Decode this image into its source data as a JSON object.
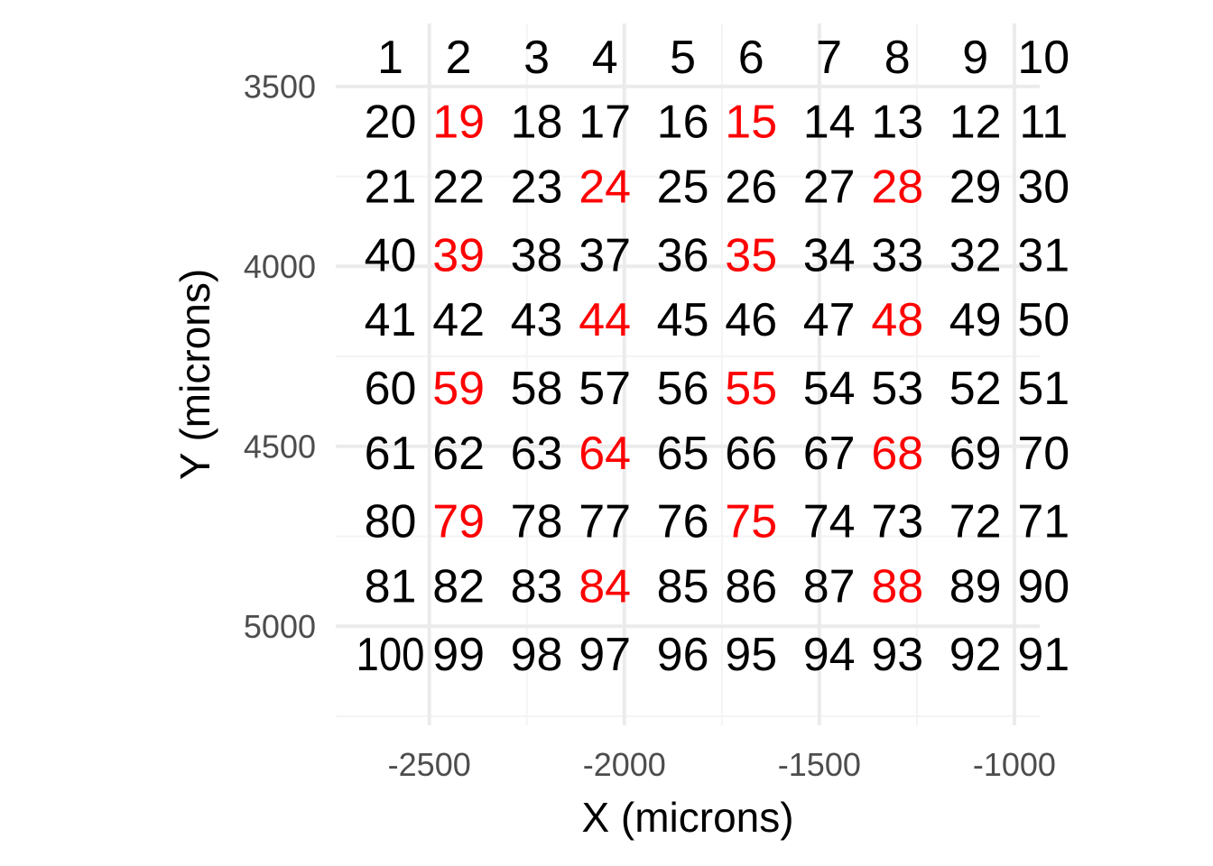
{
  "chart_data": {
    "type": "scatter",
    "xlabel": "X (microns)",
    "ylabel": "Y (microns)",
    "xlim": [
      -2740,
      -935
    ],
    "ylim": [
      3325,
      5275
    ],
    "y_reversed": true,
    "grid": true,
    "x_ticks": [
      -2500,
      -2000,
      -1500,
      -1000
    ],
    "y_ticks": [
      3500,
      4000,
      4500,
      5000
    ],
    "x_tick_labels": [
      "-2500",
      "-2000",
      "-1500",
      "-1000"
    ],
    "y_tick_labels": [
      "3500",
      "4000",
      "4500",
      "5000"
    ],
    "columns_x": [
      -2600,
      -2425,
      -2225,
      -2050,
      -1850,
      -1675,
      -1475,
      -1300,
      -1100,
      -925
    ],
    "rows_y": [
      3420,
      3600,
      3780,
      3970,
      4150,
      4340,
      4520,
      4710,
      4890,
      5080
    ],
    "grid_labels": [
      [
        1,
        2,
        3,
        4,
        5,
        6,
        7,
        8,
        9,
        10
      ],
      [
        20,
        19,
        18,
        17,
        16,
        15,
        14,
        13,
        12,
        11
      ],
      [
        21,
        22,
        23,
        24,
        25,
        26,
        27,
        28,
        29,
        30
      ],
      [
        40,
        39,
        38,
        37,
        36,
        35,
        34,
        33,
        32,
        31
      ],
      [
        41,
        42,
        43,
        44,
        45,
        46,
        47,
        48,
        49,
        50
      ],
      [
        60,
        59,
        58,
        57,
        56,
        55,
        54,
        53,
        52,
        51
      ],
      [
        61,
        62,
        63,
        64,
        65,
        66,
        67,
        68,
        69,
        70
      ],
      [
        80,
        79,
        78,
        77,
        76,
        75,
        74,
        73,
        72,
        71
      ],
      [
        81,
        82,
        83,
        84,
        85,
        86,
        87,
        88,
        89,
        90
      ],
      [
        100,
        99,
        98,
        97,
        96,
        95,
        94,
        93,
        92,
        91
      ]
    ],
    "highlighted": [
      19,
      15,
      24,
      28,
      39,
      35,
      44,
      48,
      59,
      55,
      64,
      68,
      79,
      75,
      84,
      88
    ],
    "colors": {
      "normal": "#000000",
      "highlighted": "#ff0000",
      "grid_major": "#ebebeb",
      "grid_minor": "#f4f4f4"
    }
  }
}
